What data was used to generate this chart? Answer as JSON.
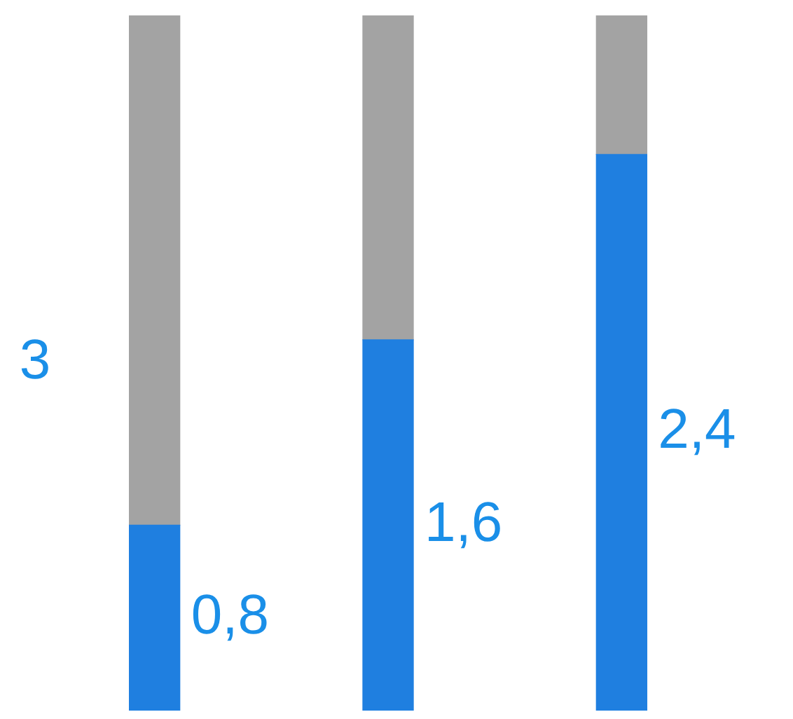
{
  "chart_data": {
    "type": "bar",
    "stacked": true,
    "categories": [
      null,
      null,
      null
    ],
    "series": [
      {
        "color": "#1f7fe0",
        "values": [
          0.8,
          1.6,
          2.4
        ],
        "value_labels": [
          "0,8",
          "1,6",
          "2,4"
        ]
      },
      {
        "color": "#a3a3a3",
        "values": [
          2.2,
          1.4,
          0.6
        ]
      }
    ],
    "ylim": [
      0,
      3
    ],
    "tick_labels": false,
    "annotations": [
      "3"
    ]
  }
}
